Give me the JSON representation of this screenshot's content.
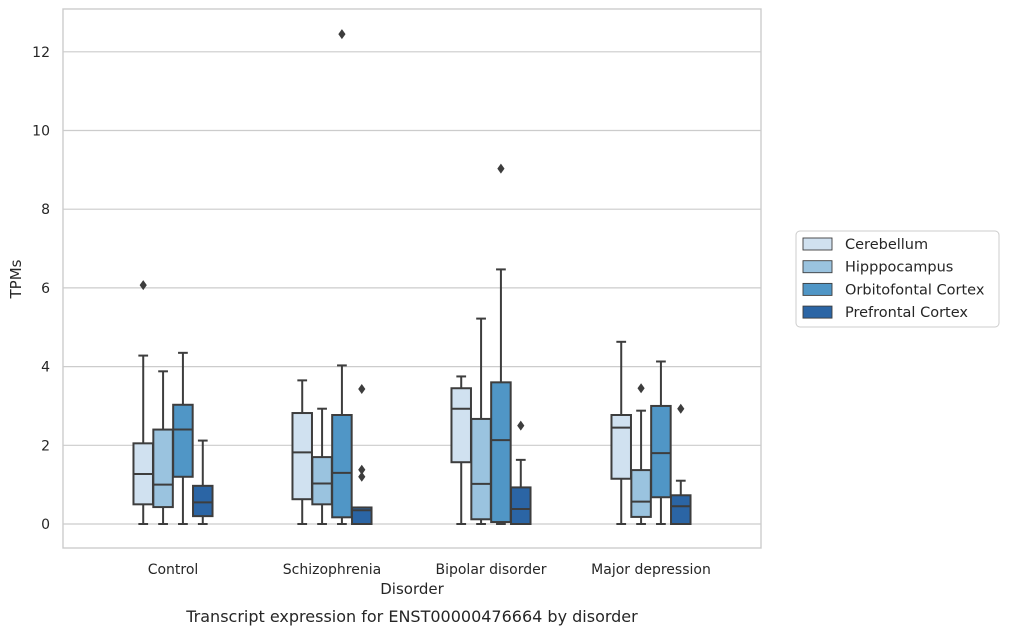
{
  "caption": "Transcript expression for ENST00000476664 by disorder",
  "chart_data": {
    "type": "box",
    "xlabel": "Disorder",
    "ylabel": "TPMs",
    "ylim": [
      -0.6,
      13.0
    ],
    "yticks": [
      0,
      2,
      4,
      6,
      8,
      10,
      12
    ],
    "grid": "horizontal",
    "legend_position": "right",
    "categories": [
      "Control",
      "Schizophrenia",
      "Bipolar disorder",
      "Major depression"
    ],
    "series": [
      {
        "name": "Cerebellum",
        "color": "#d0e1f0",
        "boxes": [
          {
            "whislo": 0.0,
            "q1": 0.5,
            "med": 1.27,
            "q3": 2.05,
            "whishi": 4.28,
            "fliers": [
              6.07
            ]
          },
          {
            "whislo": 0.0,
            "q1": 0.63,
            "med": 1.82,
            "q3": 2.82,
            "whishi": 3.65,
            "fliers": []
          },
          {
            "whislo": 0.0,
            "q1": 1.57,
            "med": 2.93,
            "q3": 3.45,
            "whishi": 3.75,
            "fliers": []
          },
          {
            "whislo": 0.0,
            "q1": 1.15,
            "med": 2.45,
            "q3": 2.77,
            "whishi": 4.63,
            "fliers": []
          }
        ]
      },
      {
        "name": "Hipppocampus",
        "color": "#9ac3df",
        "boxes": [
          {
            "whislo": 0.0,
            "q1": 0.43,
            "med": 1.0,
            "q3": 2.4,
            "whishi": 3.88,
            "fliers": []
          },
          {
            "whislo": 0.0,
            "q1": 0.5,
            "med": 1.03,
            "q3": 1.7,
            "whishi": 2.93,
            "fliers": []
          },
          {
            "whislo": 0.0,
            "q1": 0.12,
            "med": 1.02,
            "q3": 2.67,
            "whishi": 5.22,
            "fliers": []
          },
          {
            "whislo": 0.0,
            "q1": 0.18,
            "med": 0.57,
            "q3": 1.37,
            "whishi": 2.88,
            "fliers": [
              3.45
            ]
          }
        ]
      },
      {
        "name": "Orbitofontal Cortex",
        "color": "#5096c6",
        "boxes": [
          {
            "whislo": 0.0,
            "q1": 1.2,
            "med": 2.4,
            "q3": 3.03,
            "whishi": 4.35,
            "fliers": []
          },
          {
            "whislo": 0.0,
            "q1": 0.17,
            "med": 1.3,
            "q3": 2.77,
            "whishi": 4.03,
            "fliers": [
              12.45
            ]
          },
          {
            "whislo": 0.0,
            "q1": 0.05,
            "med": 2.13,
            "q3": 3.6,
            "whishi": 6.47,
            "fliers": [
              9.03
            ]
          },
          {
            "whislo": 0.0,
            "q1": 0.68,
            "med": 1.8,
            "q3": 3.0,
            "whishi": 4.13,
            "fliers": []
          }
        ]
      },
      {
        "name": "Prefrontal Cortex",
        "color": "#2b65a5",
        "boxes": [
          {
            "whislo": 0.0,
            "q1": 0.2,
            "med": 0.55,
            "q3": 0.97,
            "whishi": 2.12,
            "fliers": []
          },
          {
            "whislo": 0.0,
            "q1": 0.0,
            "med": 0.35,
            "q3": 0.42,
            "whishi": 0.42,
            "fliers": [
              1.2,
              1.38,
              3.43
            ]
          },
          {
            "whislo": 0.0,
            "q1": 0.0,
            "med": 0.38,
            "q3": 0.93,
            "whishi": 1.63,
            "fliers": [
              2.5
            ]
          },
          {
            "whislo": 0.0,
            "q1": 0.0,
            "med": 0.45,
            "q3": 0.73,
            "whishi": 1.1,
            "fliers": [
              2.93
            ]
          }
        ]
      }
    ]
  }
}
